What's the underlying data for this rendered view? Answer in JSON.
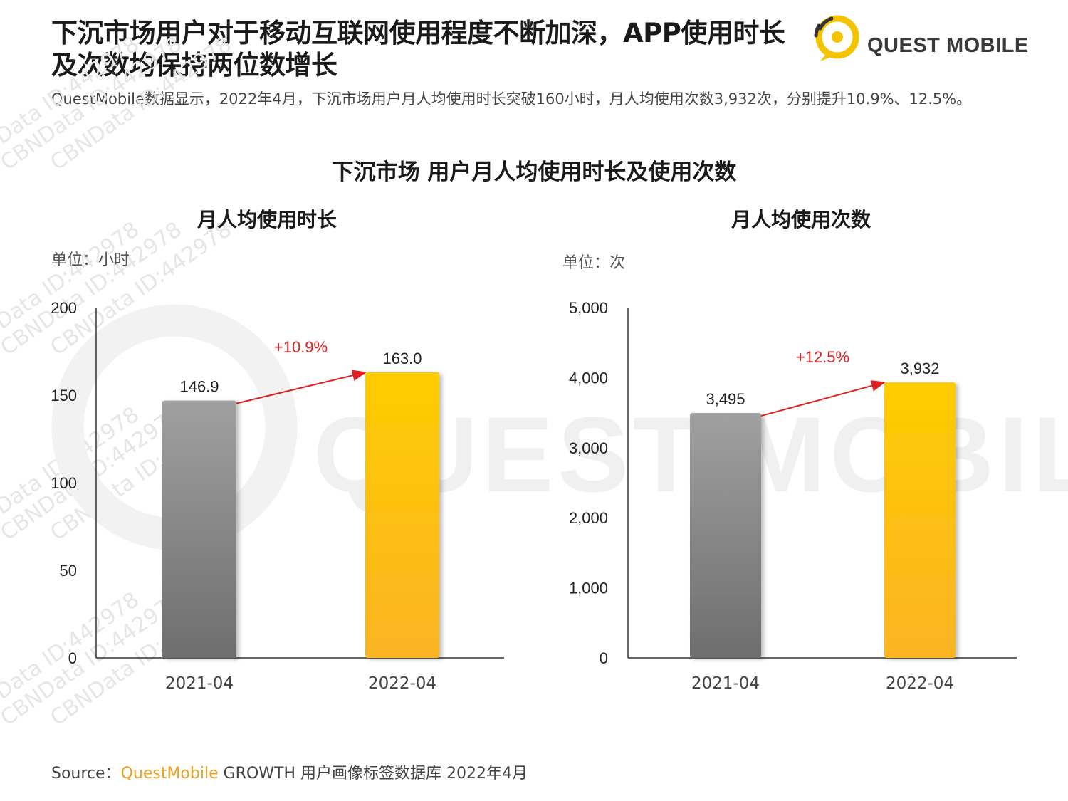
{
  "header": {
    "title": "下沉市场用户对于移动互联网使用程度不断加深，APP使用时长及次数均保持两位数增长",
    "logo_text": "QUEST MOBILE",
    "subtitle": "QuestMobile数据显示，2022年4月，下沉市场用户月人均使用时长突破160小时，月人均使用次数3,932次，分别提升10.9%、12.5%。"
  },
  "main_title": "下沉市场 用户月人均使用时长及使用次数",
  "watermark": {
    "text": "CBNData ID:442978",
    "brand_text": "QUEST MOBILE"
  },
  "colors": {
    "gray_top": "#a0a0a0",
    "gray_bottom": "#6e6e6e",
    "yellow_top": "#ffcc00",
    "yellow_bottom": "#fbb424",
    "growth": "#e02020",
    "axis": "#333333"
  },
  "chart_data": [
    {
      "type": "bar",
      "title": "月人均使用时长",
      "unit_label": "单位：小时",
      "categories": [
        "2021-04",
        "2022-04"
      ],
      "values": [
        146.9,
        163.0
      ],
      "value_labels": [
        "146.9",
        "163.0"
      ],
      "ylim": [
        0,
        200
      ],
      "yticks": [
        0,
        50,
        100,
        150,
        200
      ],
      "ytick_labels": [
        "0",
        "50",
        "100",
        "150",
        "200"
      ],
      "growth_label": "+10.9%"
    },
    {
      "type": "bar",
      "title": "月人均使用次数",
      "unit_label": "单位：次",
      "categories": [
        "2021-04",
        "2022-04"
      ],
      "values": [
        3495,
        3932
      ],
      "value_labels": [
        "3,495",
        "3,932"
      ],
      "ylim": [
        0,
        5000
      ],
      "yticks": [
        0,
        1000,
        2000,
        3000,
        4000,
        5000
      ],
      "ytick_labels": [
        "0",
        "1,000",
        "2,000",
        "3,000",
        "4,000",
        "5,000"
      ],
      "growth_label": "+12.5%"
    }
  ],
  "source": {
    "label": "Source：",
    "brand": "QuestMobile",
    "rest": " GROWTH 用户画像标签数据库 2022年4月"
  }
}
